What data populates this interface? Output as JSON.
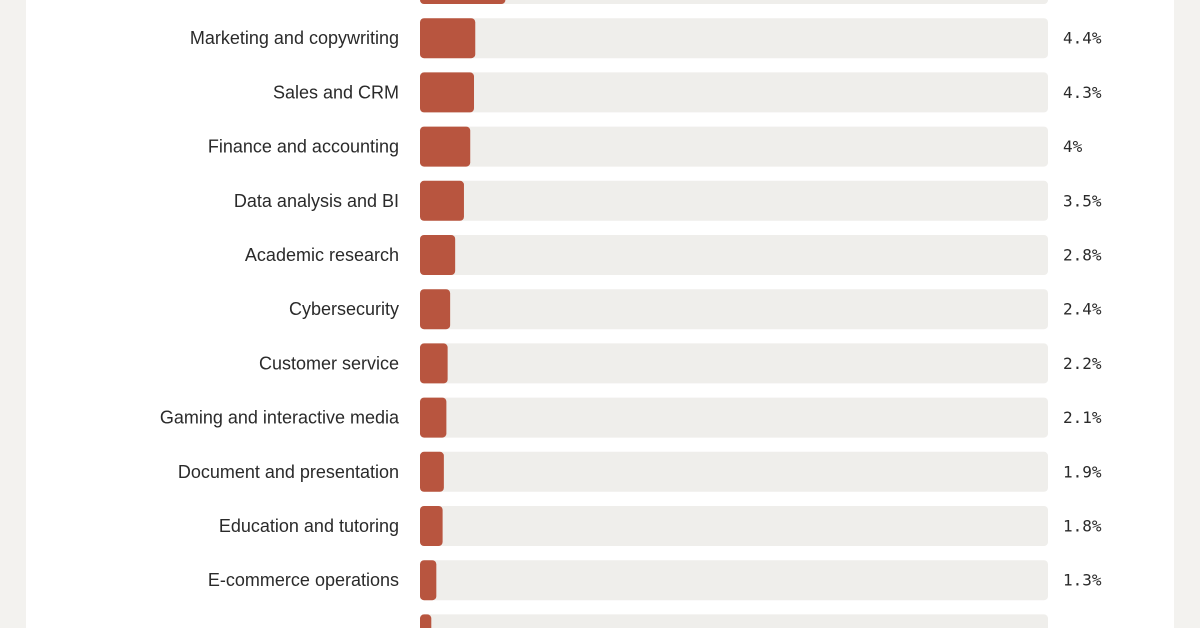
{
  "chart_data": {
    "type": "bar",
    "orientation": "horizontal",
    "categories": [
      "",
      "Marketing and copywriting",
      "Sales and CRM",
      "Finance and accounting",
      "Data analysis and BI",
      "Academic research",
      "Cybersecurity",
      "Customer service",
      "Gaming and interactive media",
      "Document and presentation",
      "Education and tutoring",
      "E-commerce operations",
      ""
    ],
    "values": [
      6.8,
      4.4,
      4.3,
      4.0,
      3.5,
      2.8,
      2.4,
      2.2,
      2.1,
      1.9,
      1.8,
      1.3,
      0.9
    ],
    "value_labels": [
      "",
      "4.4%",
      "4.3%",
      "4%",
      "3.5%",
      "2.8%",
      "2.4%",
      "2.2%",
      "2.1%",
      "1.9%",
      "1.8%",
      "1.3%",
      ""
    ],
    "xlim": [
      0,
      50
    ],
    "grid": false,
    "legend": "none",
    "bar_color": "#b8553f",
    "track_color": "#efeeeb"
  }
}
